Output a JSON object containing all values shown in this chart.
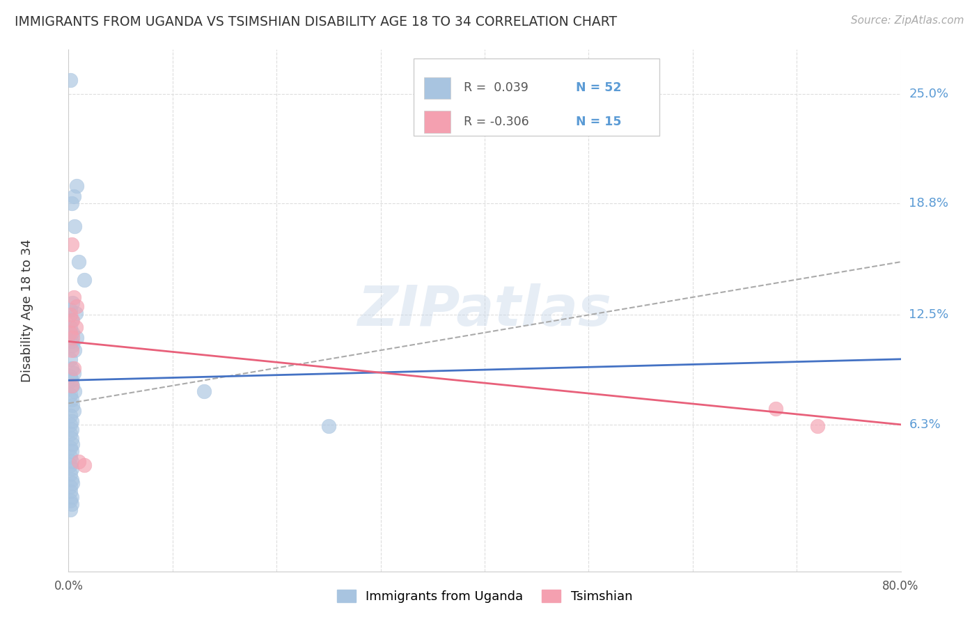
{
  "title": "IMMIGRANTS FROM UGANDA VS TSIMSHIAN DISABILITY AGE 18 TO 34 CORRELATION CHART",
  "source": "Source: ZipAtlas.com",
  "ylabel": "Disability Age 18 to 34",
  "ytick_labels": [
    "6.3%",
    "12.5%",
    "18.8%",
    "25.0%"
  ],
  "ytick_values": [
    0.063,
    0.125,
    0.188,
    0.25
  ],
  "xmin": 0.0,
  "xmax": 0.8,
  "ymin": -0.02,
  "ymax": 0.275,
  "blue_color": "#a8c4e0",
  "pink_color": "#f4a0b0",
  "blue_line_color": "#4472c4",
  "pink_line_color": "#e8607a",
  "gray_dash_color": "#aaaaaa",
  "grid_color": "#dddddd",
  "watermark": "ZIPatlas",
  "uganda_x": [
    0.002,
    0.005,
    0.008,
    0.003,
    0.006,
    0.01,
    0.015,
    0.004,
    0.002,
    0.007,
    0.003,
    0.002,
    0.004,
    0.008,
    0.003,
    0.004,
    0.006,
    0.002,
    0.003,
    0.005,
    0.002,
    0.003,
    0.004,
    0.006,
    0.002,
    0.003,
    0.004,
    0.005,
    0.002,
    0.003,
    0.002,
    0.003,
    0.002,
    0.003,
    0.004,
    0.002,
    0.003,
    0.002,
    0.003,
    0.002,
    0.003,
    0.002,
    0.003,
    0.004,
    0.002,
    0.002,
    0.003,
    0.002,
    0.003,
    0.002,
    0.13,
    0.25
  ],
  "uganda_y": [
    0.258,
    0.192,
    0.198,
    0.188,
    0.175,
    0.155,
    0.145,
    0.132,
    0.128,
    0.126,
    0.122,
    0.118,
    0.115,
    0.112,
    0.11,
    0.108,
    0.105,
    0.1,
    0.095,
    0.092,
    0.09,
    0.088,
    0.085,
    0.082,
    0.08,
    0.077,
    0.074,
    0.071,
    0.068,
    0.065,
    0.063,
    0.06,
    0.058,
    0.055,
    0.052,
    0.05,
    0.048,
    0.045,
    0.042,
    0.04,
    0.038,
    0.035,
    0.032,
    0.03,
    0.028,
    0.025,
    0.022,
    0.02,
    0.018,
    0.015,
    0.082,
    0.062
  ],
  "tsimshian_x": [
    0.003,
    0.005,
    0.008,
    0.002,
    0.004,
    0.007,
    0.002,
    0.004,
    0.003,
    0.005,
    0.003,
    0.01,
    0.015,
    0.68,
    0.72
  ],
  "tsimshian_y": [
    0.165,
    0.135,
    0.13,
    0.125,
    0.122,
    0.118,
    0.115,
    0.112,
    0.105,
    0.095,
    0.085,
    0.042,
    0.04,
    0.072,
    0.062
  ],
  "blue_trend_x": [
    0.0,
    0.8
  ],
  "blue_trend_y": [
    0.088,
    0.1
  ],
  "gray_trend_x": [
    0.0,
    0.8
  ],
  "gray_trend_y": [
    0.075,
    0.155
  ],
  "pink_trend_x": [
    0.0,
    0.8
  ],
  "pink_trend_y": [
    0.11,
    0.063
  ]
}
